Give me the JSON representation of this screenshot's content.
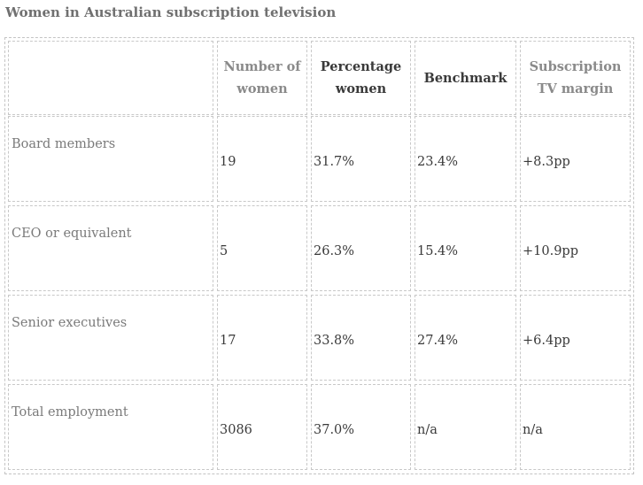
{
  "title": "Women in Australian subscription television",
  "columns": [
    "",
    "Number of women",
    "Percentage women",
    "Benchmark",
    "Subscription TV margin"
  ],
  "rows": [
    {
      "label": "Board members",
      "number": "19",
      "percentage": "31.7%",
      "benchmark": "23.4%",
      "margin": "+8.3pp"
    },
    {
      "label": "CEO or equivalent",
      "number": "5",
      "percentage": "26.3%",
      "benchmark": "15.4%",
      "margin": "+10.9pp"
    },
    {
      "label": "Senior executives",
      "number": "17",
      "percentage": "33.8%",
      "benchmark": "27.4%",
      "margin": "+6.4pp"
    },
    {
      "label": "Total employment",
      "number": "3086",
      "percentage": "37.0%",
      "benchmark": "n/a",
      "margin": "n/a"
    }
  ],
  "colors": {
    "title": "#707070",
    "header_muted": "#8a8a8a",
    "header_dark": "#3a3a3a",
    "border": "#c8c8c8"
  }
}
